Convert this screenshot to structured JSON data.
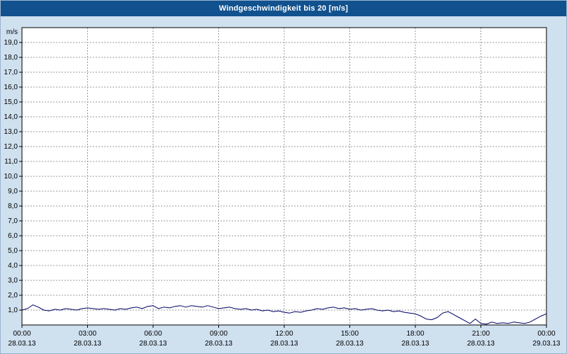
{
  "window": {
    "title": "Windgeschwindigkeit bis 20 [m/s]"
  },
  "colors": {
    "titlebar_bg": "#11518e",
    "page_bg": "#cfe0ef",
    "plot_bg": "#ffffff",
    "grid": "#999999",
    "frame": "#000000",
    "line": "#000066"
  },
  "chart_data": {
    "type": "line",
    "title": "Windgeschwindigkeit bis 20 [m/s]",
    "y_unit_label": "m/s",
    "ylim": [
      0,
      20
    ],
    "ytick_values": [
      19,
      18,
      17,
      16,
      15,
      14,
      13,
      12,
      11,
      10,
      9,
      8,
      7,
      6,
      5,
      4,
      3,
      2,
      1
    ],
    "ytick_labels": [
      "19,0",
      "18,0",
      "17,0",
      "16,0",
      "15,0",
      "14,0",
      "13,0",
      "12,0",
      "11,0",
      "10,0",
      "9,0",
      "8,0",
      "7,0",
      "6,0",
      "5,0",
      "4,0",
      "3,0",
      "2,0",
      "1,0"
    ],
    "xtick_hours": [
      0,
      3,
      6,
      9,
      12,
      15,
      18,
      21,
      24
    ],
    "xtick_time_labels": [
      "00:00",
      "03:00",
      "06:00",
      "09:00",
      "12:00",
      "15:00",
      "18:00",
      "21:00",
      "00:00"
    ],
    "xtick_date_labels": [
      "28.03.13",
      "28.03.13",
      "28.03.13",
      "28.03.13",
      "28.03.13",
      "28.03.13",
      "28.03.13",
      "28.03.13",
      "29.03.13"
    ],
    "grid": "dashed",
    "legend": "none",
    "series_name": "Windgeschwindigkeit",
    "x_start_hour": 0,
    "x_step_hours": 0.25,
    "values": [
      1.0,
      1.1,
      1.35,
      1.2,
      1.0,
      0.95,
      1.05,
      1.0,
      1.1,
      1.05,
      1.0,
      1.1,
      1.15,
      1.1,
      1.05,
      1.1,
      1.05,
      1.0,
      1.1,
      1.05,
      1.15,
      1.2,
      1.1,
      1.25,
      1.3,
      1.1,
      1.2,
      1.15,
      1.25,
      1.3,
      1.2,
      1.3,
      1.25,
      1.2,
      1.3,
      1.2,
      1.1,
      1.15,
      1.2,
      1.1,
      1.05,
      1.1,
      1.0,
      1.05,
      0.95,
      1.0,
      0.9,
      0.95,
      0.85,
      0.8,
      0.9,
      0.85,
      0.95,
      1.0,
      1.1,
      1.05,
      1.15,
      1.2,
      1.1,
      1.15,
      1.05,
      1.1,
      1.0,
      1.05,
      1.1,
      1.0,
      0.95,
      1.0,
      0.9,
      0.95,
      0.85,
      0.8,
      0.75,
      0.6,
      0.4,
      0.35,
      0.5,
      0.8,
      0.9,
      0.7,
      0.5,
      0.3,
      0.1,
      0.4,
      0.1,
      0.05,
      0.2,
      0.1,
      0.15,
      0.1,
      0.2,
      0.15,
      0.1,
      0.2,
      0.4,
      0.6,
      0.75
    ]
  }
}
